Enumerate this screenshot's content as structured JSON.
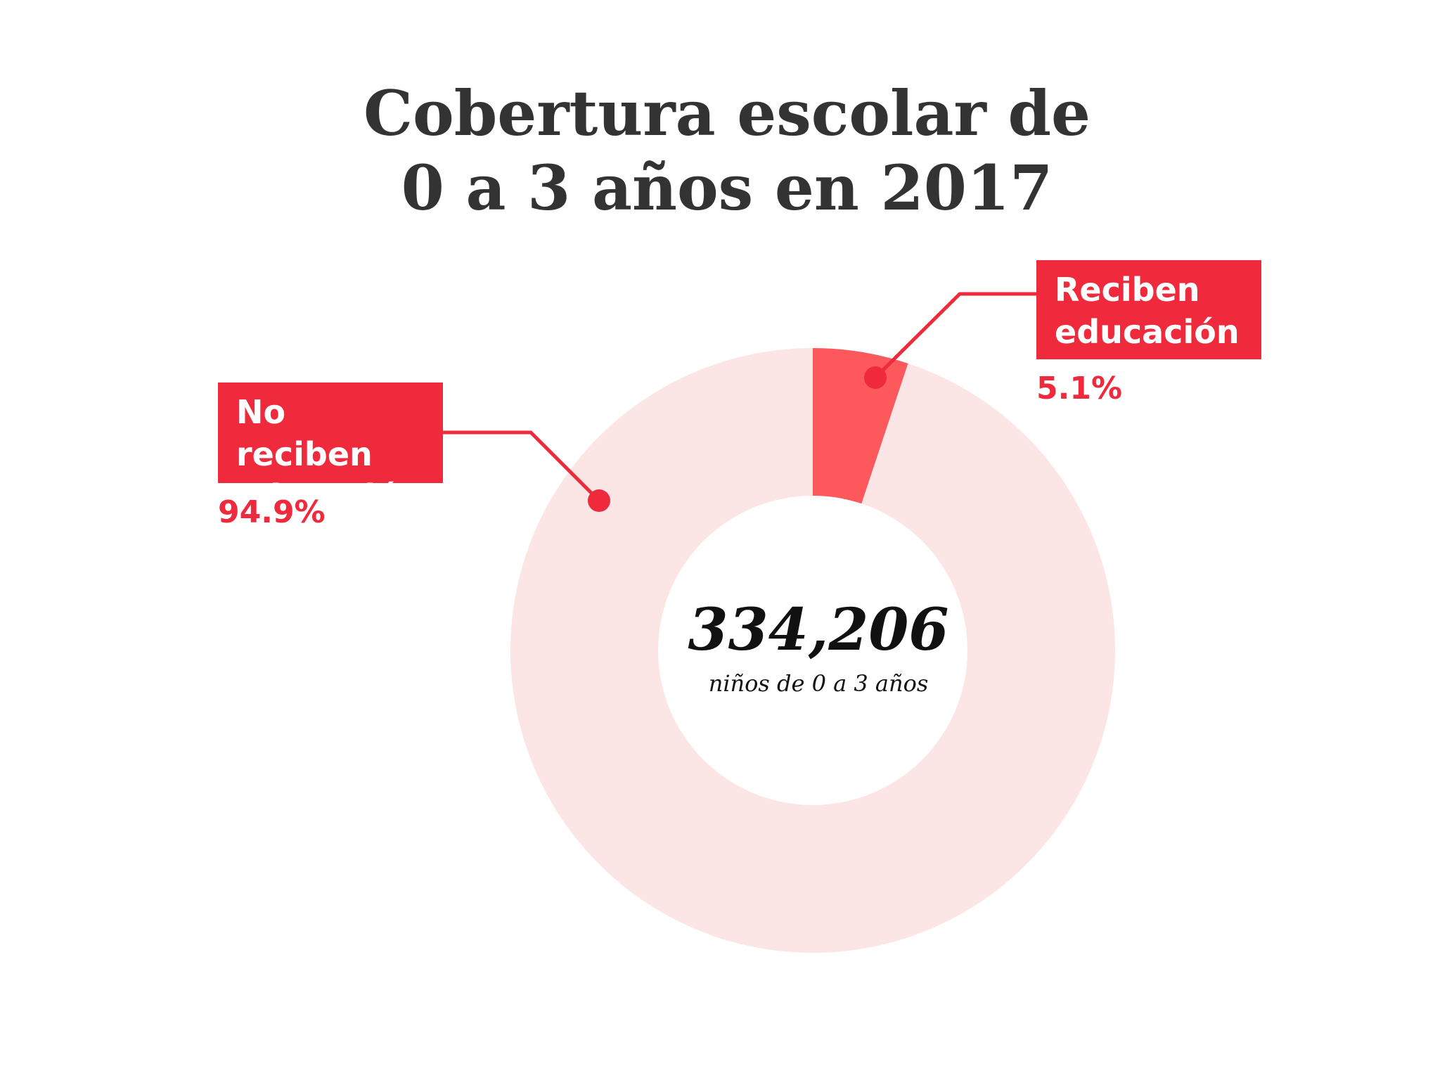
{
  "title": {
    "line1": "Cobertura escolar de",
    "line2": "0 a 3 años en 2017"
  },
  "center": {
    "value": "334,206",
    "caption": "niños de 0 a 3 años"
  },
  "colors": {
    "accent": "#ee2a3c",
    "received_slice": "#fd585c",
    "not_received_slice": "#fbe5e5",
    "title_text": "#333333"
  },
  "chart_data": {
    "type": "pie",
    "style": "donut",
    "total": 334206,
    "total_caption": "niños de 0 a 3 años",
    "slices": [
      {
        "label": "Reciben educación",
        "value": 5.1,
        "value_label": "5.1%"
      },
      {
        "label": "No reciben educación",
        "value": 94.9,
        "value_label": "94.9%"
      }
    ]
  },
  "labels": {
    "received": {
      "line1": "Reciben",
      "line2": "educación",
      "pct": "5.1%"
    },
    "not_received": {
      "line1": "No reciben",
      "line2": "educación",
      "pct": "94.9%"
    }
  }
}
